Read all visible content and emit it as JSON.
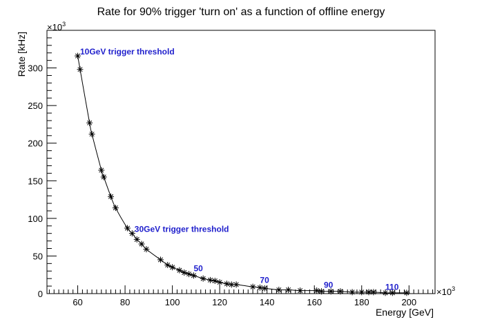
{
  "chart_data": {
    "type": "line",
    "title": "Rate for 90% trigger 'turn on' as a function of offline energy",
    "xlabel": "Energy [GeV]",
    "ylabel": "Rate [kHz]",
    "x_multiplier": "×10",
    "x_multiplier_exp": "3",
    "y_multiplier": "×10",
    "y_multiplier_exp": "3",
    "xlim": [
      47,
      211
    ],
    "ylim": [
      0,
      350
    ],
    "x_ticks": [
      60,
      80,
      100,
      120,
      140,
      160,
      180,
      200
    ],
    "y_ticks": [
      0,
      50,
      100,
      150,
      200,
      250,
      300
    ],
    "grid": false,
    "marker": "asterisk",
    "annotation_color": "#1f1fcc",
    "annotations": [
      {
        "text": "10GeV trigger threshold",
        "x": 61,
        "y": 318
      },
      {
        "text": "30GeV trigger threshold",
        "x": 84,
        "y": 82
      },
      {
        "text": "50",
        "x": 109,
        "y": 30
      },
      {
        "text": "70",
        "x": 137,
        "y": 14
      },
      {
        "text": "90",
        "x": 164,
        "y": 8
      },
      {
        "text": "110",
        "x": 190,
        "y": 5
      }
    ],
    "series": [
      {
        "x": [
          60,
          61,
          65,
          66,
          70,
          71,
          74,
          76,
          81,
          83,
          85,
          87,
          89,
          95,
          98,
          100,
          103,
          105,
          107,
          109,
          113,
          116,
          118,
          120,
          123,
          125,
          127,
          134,
          137,
          139,
          145,
          149,
          154,
          161,
          163,
          167,
          171,
          176,
          180,
          183,
          185,
          190,
          193,
          199
        ],
        "y": [
          316,
          298,
          227,
          212,
          164,
          155,
          129,
          114,
          87,
          80,
          72,
          66,
          59,
          45,
          38,
          35,
          31,
          28,
          26,
          24,
          20,
          18,
          17,
          15,
          13,
          12,
          12,
          9,
          8,
          7,
          5,
          5,
          4,
          4,
          3,
          3,
          3,
          2,
          2,
          2,
          2,
          1,
          1,
          1
        ]
      }
    ]
  }
}
